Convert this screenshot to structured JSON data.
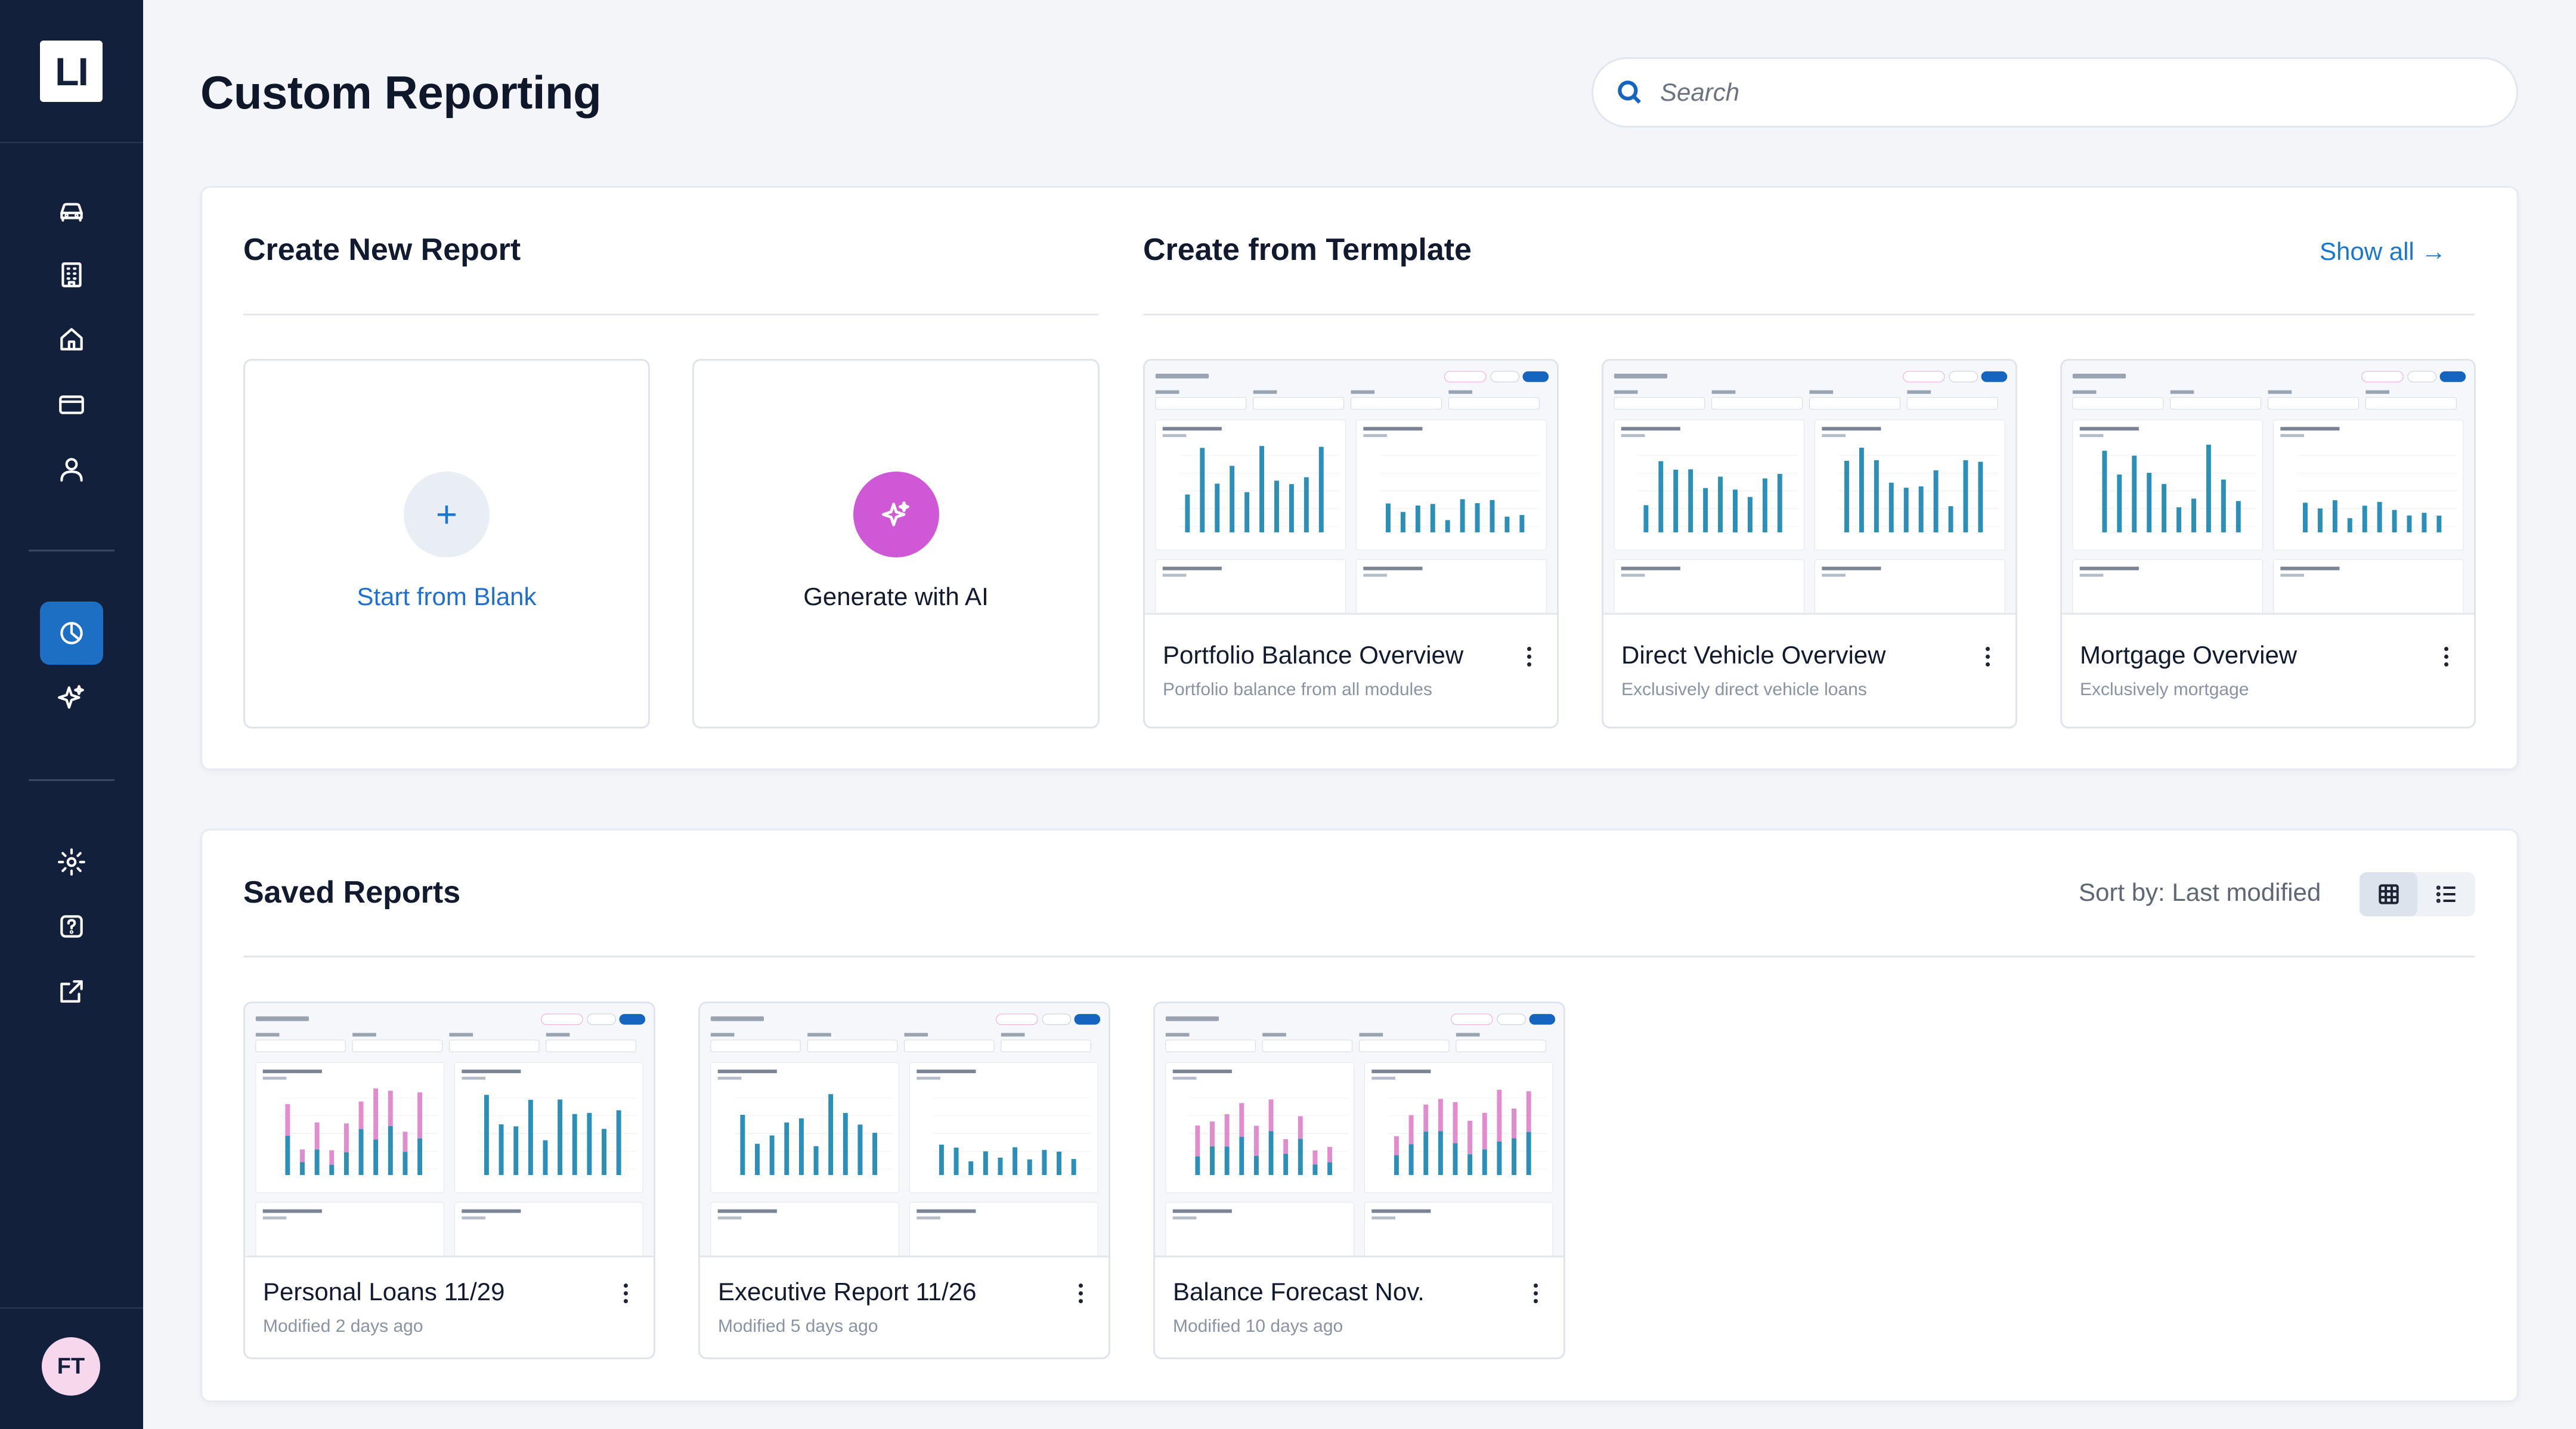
{
  "app": {
    "logo_text": "LI",
    "user_initials": "FT"
  },
  "header": {
    "title": "Custom Reporting",
    "search_placeholder": "Search"
  },
  "sidebar": {
    "icons": [
      "car-icon",
      "building-icon",
      "home-icon",
      "credit-card-icon",
      "user-icon",
      "pie-chart-icon",
      "sparkles-icon",
      "gear-icon",
      "help-icon",
      "external-link-icon"
    ],
    "active": "pie-chart-icon"
  },
  "create": {
    "title": "Create New Report",
    "blank_label": "Start from Blank",
    "ai_label": "Generate with AI"
  },
  "templates": {
    "title": "Create from Termplate",
    "show_all": "Show all →",
    "items": [
      {
        "title": "Portfolio Balance Overview",
        "subtitle": "Portfolio balance from all modules"
      },
      {
        "title": "Direct Vehicle Overview",
        "subtitle": "Exclusively direct vehicle loans"
      },
      {
        "title": "Mortgage Overview",
        "subtitle": "Exclusively mortgage"
      }
    ]
  },
  "saved": {
    "title": "Saved Reports",
    "sort_label": "Sort by: Last modified",
    "view": "grid",
    "items": [
      {
        "title": "Personal Loans 11/29",
        "subtitle": "Modified 2 days ago"
      },
      {
        "title": "Executive Report 11/26",
        "subtitle": "Modified 5 days ago"
      },
      {
        "title": "Balance Forecast Nov.",
        "subtitle": "Modified 10 days ago"
      }
    ]
  },
  "colors": {
    "sidebar_bg": "#13203b",
    "accent": "#1976d2",
    "ai": "#cf58d6",
    "bar_blue": "#2b8fb8",
    "bar_pink": "#e08ccd"
  }
}
